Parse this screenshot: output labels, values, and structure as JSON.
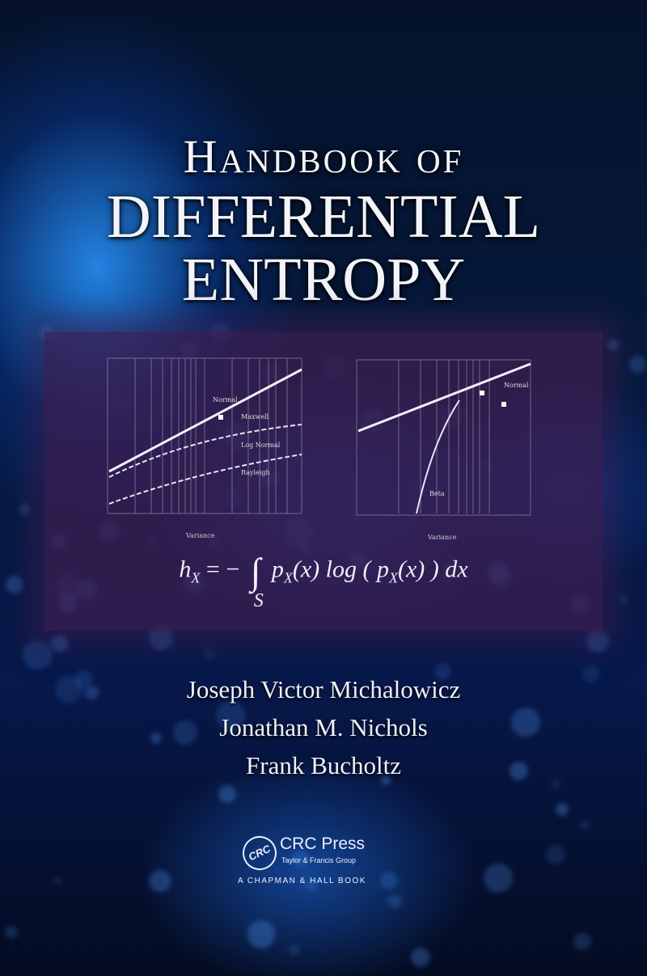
{
  "cover": {
    "title_line1": "Handbook of",
    "title_line2": "DIFFERENTIAL",
    "title_line3": "ENTROPY",
    "formula": {
      "lhs": "h",
      "lhs_sub": "X",
      "equals": "= −",
      "integral": "∫",
      "domain": "S",
      "integrand": "p",
      "integrand_sub": "X",
      "arg": "(x) log ( p",
      "arg_sub": "X",
      "tail": "(x) ) dx"
    },
    "authors": [
      "Joseph Victor Michalowicz",
      "Jonathan M. Nichols",
      "Frank Bucholtz"
    ],
    "publisher": {
      "logo_text": "CRC",
      "name": "CRC Press",
      "group": "Taylor & Francis Group",
      "imprint": "A CHAPMAN & HALL BOOK"
    }
  },
  "plots": {
    "left": {
      "xlabel": "Variance",
      "labels": [
        "Normal",
        "Maxwell",
        "Log Normal",
        "Rayleigh"
      ]
    },
    "right": {
      "xlabel": "Variance",
      "labels": [
        "Normal",
        "Beta"
      ]
    }
  },
  "colors": {
    "background": "#061a3e",
    "panel": "#3c1e50",
    "text": "#f2f4fa"
  }
}
